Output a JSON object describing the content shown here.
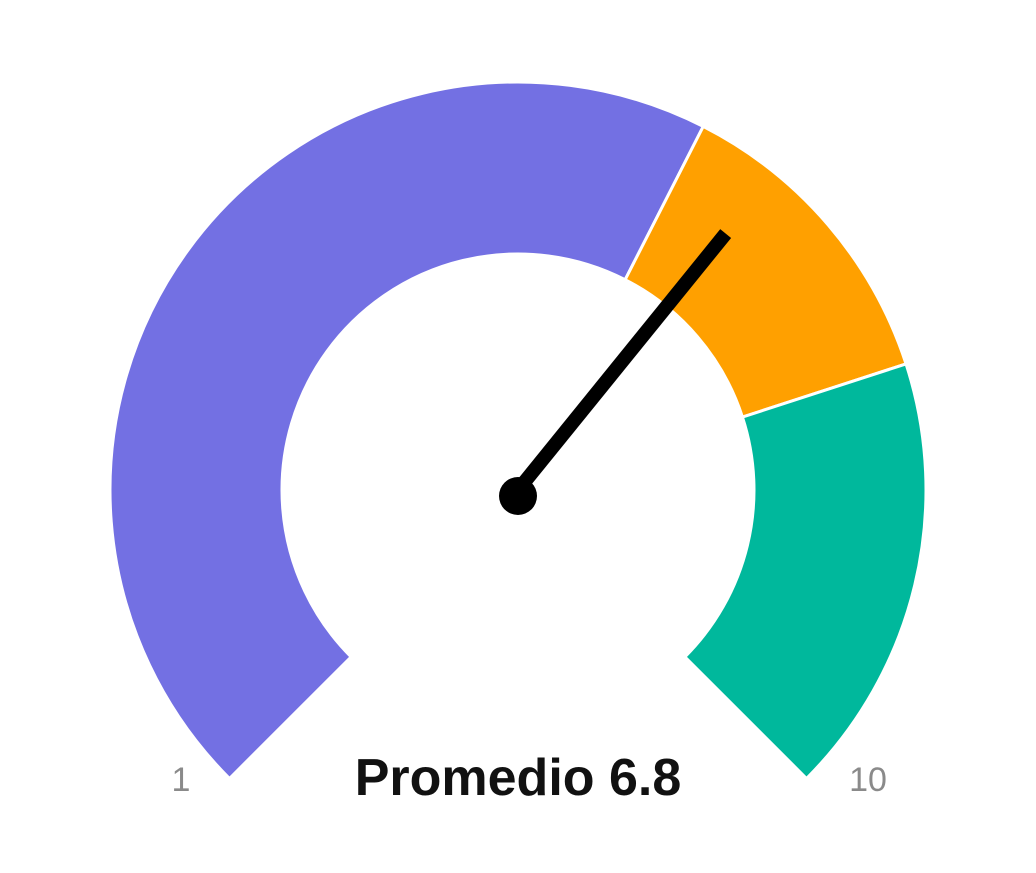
{
  "chart_data": {
    "type": "gauge",
    "min": 1,
    "max": 10,
    "value": 6.8,
    "min_label": "1",
    "max_label": "10",
    "value_label": "Promedio 6.8",
    "bands": [
      {
        "from": 1,
        "to": 6.4,
        "color": "#7370e3"
      },
      {
        "from": 6.4,
        "to": 7.9,
        "color": "#ffa000"
      },
      {
        "from": 7.9,
        "to": 10,
        "color": "#00b89c"
      }
    ]
  }
}
